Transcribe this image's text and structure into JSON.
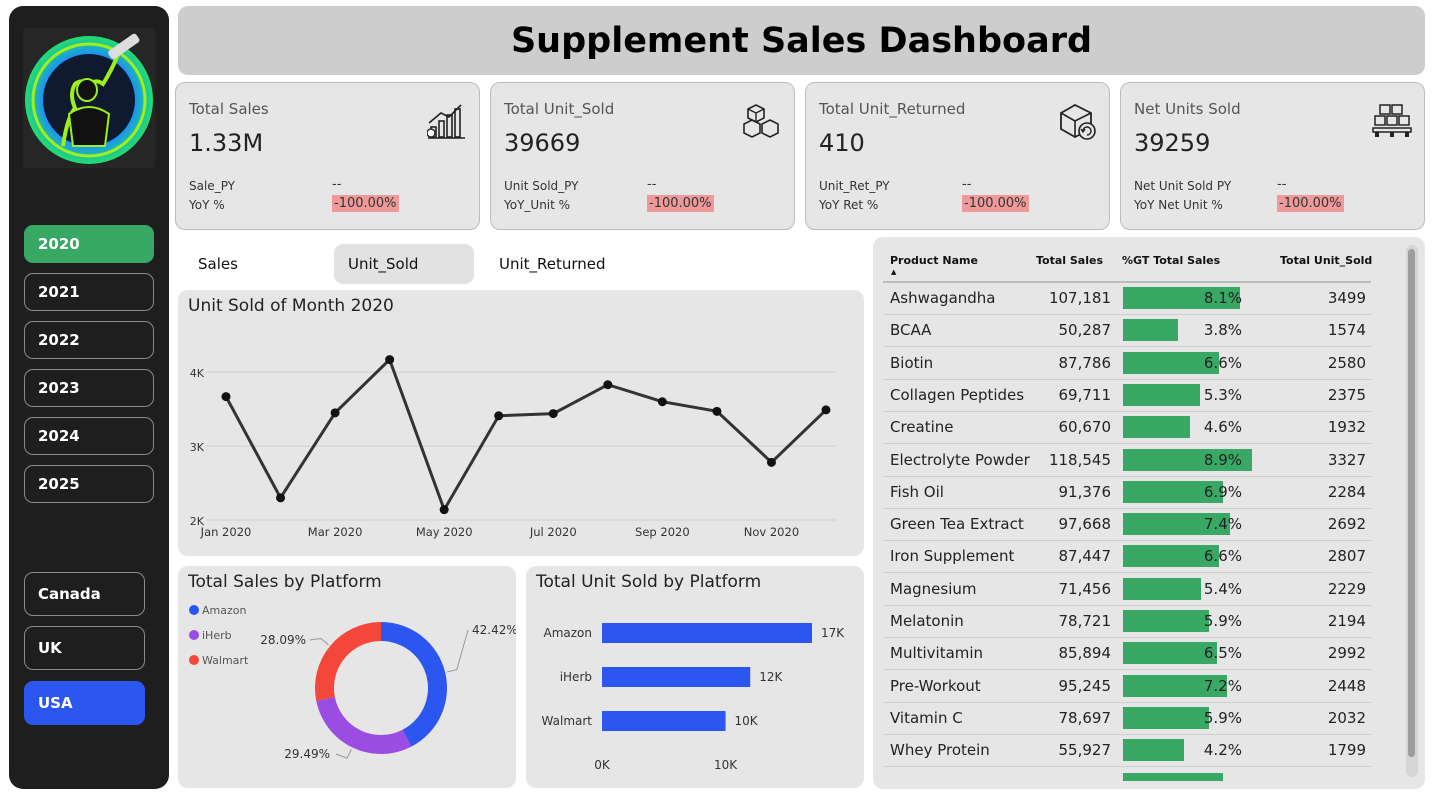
{
  "header": {
    "title": "Supplement Sales Dashboard"
  },
  "sidebar": {
    "years": [
      {
        "label": "2020",
        "selected": true
      },
      {
        "label": "2021",
        "selected": false
      },
      {
        "label": "2022",
        "selected": false
      },
      {
        "label": "2023",
        "selected": false
      },
      {
        "label": "2024",
        "selected": false
      },
      {
        "label": "2025",
        "selected": false
      }
    ],
    "countries": [
      {
        "label": "Canada",
        "selected": false
      },
      {
        "label": "UK",
        "selected": false
      },
      {
        "label": "USA",
        "selected": true
      }
    ]
  },
  "kpis": [
    {
      "title": "Total Sales",
      "value": "1.33M",
      "l1": "Sale_PY",
      "v1": "--",
      "l2": "YoY %",
      "v2": "-100.00%",
      "icon": "sales-growth-icon"
    },
    {
      "title": "Total Unit_Sold",
      "value": "39669",
      "l1": "Unit Sold_PY",
      "v1": "--",
      "l2": "YoY_Unit %",
      "v2": "-100.00%",
      "icon": "boxes-icon"
    },
    {
      "title": "Total Unit_Returned",
      "value": "410",
      "l1": "Unit_Ret_PY",
      "v1": "--",
      "l2": "YoY Ret %",
      "v2": "-100.00%",
      "icon": "return-box-icon"
    },
    {
      "title": "Net Units Sold",
      "value": "39259",
      "l1": "Net Unit Sold PY",
      "v1": "--",
      "l2": "YoY Net Unit %",
      "v2": "-100.00%",
      "icon": "pallet-icon"
    }
  ],
  "tabs": [
    {
      "label": "Sales",
      "selected": false
    },
    {
      "label": "Unit_Sold",
      "selected": true
    },
    {
      "label": "Unit_Returned",
      "selected": false
    }
  ],
  "colors": {
    "green": "#3aa865",
    "blue": "#2b57f0",
    "purple": "#9b4de3",
    "red": "#f2473a",
    "neg": "#ef9a9a"
  },
  "charts": {
    "line": {
      "title": "Unit Sold of Month 2020",
      "x_ticks": [
        "Jan 2020",
        "Mar 2020",
        "May 2020",
        "Jul 2020",
        "Sep 2020",
        "Nov 2020"
      ],
      "y_ticks": [
        "2K",
        "3K",
        "4K"
      ]
    },
    "donut": {
      "title": "Total Sales by Platform",
      "legend": [
        "Amazon",
        "iHerb",
        "Walmart"
      ],
      "labels": [
        "42.42%",
        "29.49%",
        "28.09%"
      ]
    },
    "bars": {
      "title": "Total Unit Sold by Platform",
      "cats": [
        "Amazon",
        "iHerb",
        "Walmart"
      ],
      "labels": [
        "17K",
        "12K",
        "10K"
      ],
      "x_ticks": [
        "0K",
        "10K"
      ]
    }
  },
  "chart_data": [
    {
      "type": "line",
      "title": "Unit Sold of Month 2020",
      "x": [
        "Jan 2020",
        "Feb 2020",
        "Mar 2020",
        "Apr 2020",
        "May 2020",
        "Jun 2020",
        "Jul 2020",
        "Aug 2020",
        "Sep 2020",
        "Oct 2020",
        "Nov 2020",
        "Dec 2020"
      ],
      "values": [
        3670,
        2300,
        3450,
        4170,
        2140,
        3410,
        3440,
        3830,
        3600,
        3470,
        2780,
        3490
      ],
      "ylim": [
        2000,
        4300
      ],
      "grid": true
    },
    {
      "type": "pie",
      "title": "Total Sales by Platform",
      "categories": [
        "Amazon",
        "iHerb",
        "Walmart"
      ],
      "values": [
        42.42,
        29.49,
        28.09
      ],
      "legend": "top-left"
    },
    {
      "type": "bar",
      "title": "Total Unit Sold by Platform",
      "categories": [
        "Amazon",
        "iHerb",
        "Walmart"
      ],
      "values": [
        17000,
        12000,
        10000
      ],
      "xlim": [
        0,
        17000
      ]
    }
  ],
  "table": {
    "headers": [
      "Product Name",
      "Total Sales",
      "%GT Total Sales",
      "Total Unit_Sold"
    ],
    "rows": [
      {
        "name": "Ashwagandha",
        "sales": "107,181",
        "pct": "8.1%",
        "pct_value": 8.1,
        "units": "3499"
      },
      {
        "name": "BCAA",
        "sales": "50,287",
        "pct": "3.8%",
        "pct_value": 3.8,
        "units": "1574"
      },
      {
        "name": "Biotin",
        "sales": "87,786",
        "pct": "6.6%",
        "pct_value": 6.6,
        "units": "2580"
      },
      {
        "name": "Collagen Peptides",
        "sales": "69,711",
        "pct": "5.3%",
        "pct_value": 5.3,
        "units": "2375"
      },
      {
        "name": "Creatine",
        "sales": "60,670",
        "pct": "4.6%",
        "pct_value": 4.6,
        "units": "1932"
      },
      {
        "name": "Electrolyte Powder",
        "sales": "118,545",
        "pct": "8.9%",
        "pct_value": 8.9,
        "units": "3327"
      },
      {
        "name": "Fish Oil",
        "sales": "91,376",
        "pct": "6.9%",
        "pct_value": 6.9,
        "units": "2284"
      },
      {
        "name": "Green Tea Extract",
        "sales": "97,668",
        "pct": "7.4%",
        "pct_value": 7.4,
        "units": "2692"
      },
      {
        "name": "Iron Supplement",
        "sales": "87,447",
        "pct": "6.6%",
        "pct_value": 6.6,
        "units": "2807"
      },
      {
        "name": "Magnesium",
        "sales": "71,456",
        "pct": "5.4%",
        "pct_value": 5.4,
        "units": "2229"
      },
      {
        "name": "Melatonin",
        "sales": "78,721",
        "pct": "5.9%",
        "pct_value": 5.9,
        "units": "2194"
      },
      {
        "name": "Multivitamin",
        "sales": "85,894",
        "pct": "6.5%",
        "pct_value": 6.5,
        "units": "2992"
      },
      {
        "name": "Pre-Workout",
        "sales": "95,245",
        "pct": "7.2%",
        "pct_value": 7.2,
        "units": "2448"
      },
      {
        "name": "Vitamin C",
        "sales": "78,697",
        "pct": "5.9%",
        "pct_value": 5.9,
        "units": "2032"
      },
      {
        "name": "Whey Protein",
        "sales": "55,927",
        "pct": "4.2%",
        "pct_value": 4.2,
        "units": "1799"
      }
    ]
  }
}
